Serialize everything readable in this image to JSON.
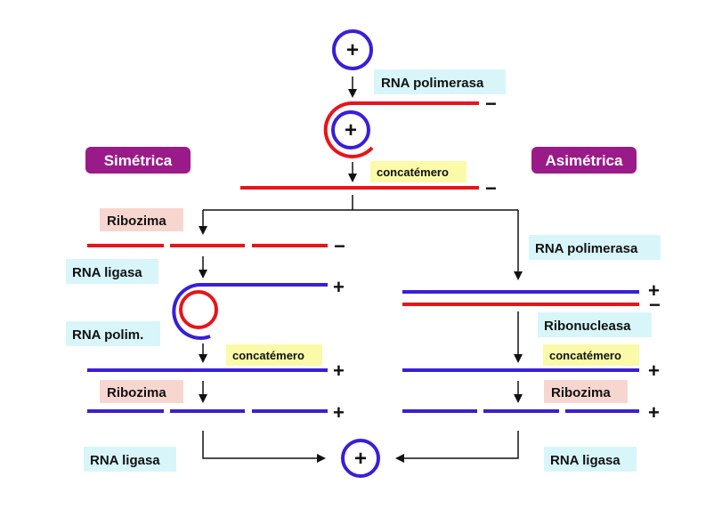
{
  "colors": {
    "neg_strand": "#e8141a",
    "pos_strand": "#3a1fd6",
    "arrow": "#111111",
    "cyan_box": "#d8f6fa",
    "yellow_box": "#fafaa8",
    "pink_box": "#f8d6d0",
    "purple_title": "#9b1a8a"
  },
  "titles": {
    "symmetric": "Simétrica",
    "asymmetric": "Asimétrica"
  },
  "circle_label": "+",
  "top": {
    "polymerase": "RNA polimerasa",
    "concatemer": "concatémero",
    "strand_sign_1": "−",
    "strand_sign_2": "−"
  },
  "left": {
    "ribozyme_1": "Ribozima",
    "sign_pieces_1": "−",
    "ligase_1": "RNA ligasa",
    "sign_circle": "+",
    "polim": "RNA polim.",
    "concatemer": "concatémero",
    "sign_long": "+",
    "ribozyme_2": "Ribozima",
    "sign_pieces_2": "+",
    "ligase_final": "RNA ligasa"
  },
  "right": {
    "polymerase": "RNA polimerasa",
    "sign_duplex_pos": "+",
    "sign_duplex_neg": "−",
    "ribonuclease": "Ribonucleasa",
    "concatemer": "concatémero",
    "sign_long": "+",
    "ribozyme": "Ribozima",
    "sign_pieces": "+",
    "ligase_final": "RNA ligasa"
  }
}
